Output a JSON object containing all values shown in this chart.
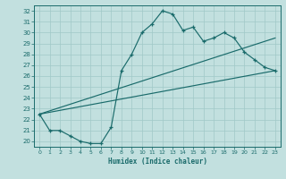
{
  "bg_color": "#c2e0df",
  "grid_color": "#a0c8c8",
  "line_color": "#1a6b6b",
  "xlabel": "Humidex (Indice chaleur)",
  "xlim": [
    -0.5,
    23.5
  ],
  "ylim": [
    19.5,
    32.5
  ],
  "xticks": [
    0,
    1,
    2,
    3,
    4,
    5,
    6,
    7,
    8,
    9,
    10,
    11,
    12,
    13,
    14,
    15,
    16,
    17,
    18,
    19,
    20,
    21,
    22,
    23
  ],
  "yticks": [
    20,
    21,
    22,
    23,
    24,
    25,
    26,
    27,
    28,
    29,
    30,
    31,
    32
  ],
  "main_x": [
    0,
    1,
    2,
    3,
    4,
    5,
    6,
    7,
    8,
    9,
    10,
    11,
    12,
    13,
    14,
    15,
    16,
    17,
    18,
    19,
    20,
    21,
    22,
    23
  ],
  "main_y": [
    22.5,
    21.0,
    21.0,
    20.5,
    20.0,
    19.8,
    19.8,
    21.3,
    26.5,
    28.0,
    30.0,
    30.8,
    32.0,
    31.7,
    30.2,
    30.5,
    29.2,
    29.5,
    30.0,
    29.5,
    28.2,
    27.5,
    26.8,
    26.5
  ],
  "line2_x0": 0,
  "line2_x1": 23,
  "line2_y0": 22.5,
  "line2_y1": 29.5,
  "line3_x0": 0,
  "line3_x1": 23,
  "line3_y0": 22.5,
  "line3_y1": 26.5
}
